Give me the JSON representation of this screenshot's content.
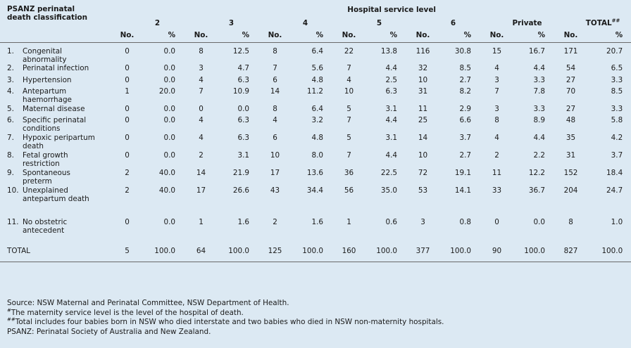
{
  "header": {
    "classification_title": "PSANZ perinatal death classification",
    "classification_line1": "PSANZ perinatal",
    "classification_line2": "death classification",
    "group_title": "Hospital service level",
    "levels": [
      "2",
      "3",
      "4",
      "5",
      "6",
      "Private",
      "TOTAL"
    ],
    "total_superscript": "##",
    "no_label": "No.",
    "pct_label": "%"
  },
  "rows": [
    {
      "idx": "1.",
      "label": "Congenital abnormality",
      "values": [
        "0",
        "0.0",
        "8",
        "12.5",
        "8",
        "6.4",
        "22",
        "13.8",
        "116",
        "30.8",
        "15",
        "16.7",
        "171",
        "20.7"
      ]
    },
    {
      "idx": "2.",
      "label": "Perinatal infection",
      "values": [
        "0",
        "0.0",
        "3",
        "4.7",
        "7",
        "5.6",
        "7",
        "4.4",
        "32",
        "8.5",
        "4",
        "4.4",
        "54",
        "6.5"
      ]
    },
    {
      "idx": "3.",
      "label": "Hypertension",
      "values": [
        "0",
        "0.0",
        "4",
        "6.3",
        "6",
        "4.8",
        "4",
        "2.5",
        "10",
        "2.7",
        "3",
        "3.3",
        "27",
        "3.3"
      ]
    },
    {
      "idx": "4.",
      "label": "Antepartum haemorrhage",
      "values": [
        "1",
        "20.0",
        "7",
        "10.9",
        "14",
        "11.2",
        "10",
        "6.3",
        "31",
        "8.2",
        "7",
        "7.8",
        "70",
        "8.5"
      ]
    },
    {
      "idx": "5.",
      "label": "Maternal disease",
      "values": [
        "0",
        "0.0",
        "0",
        "0.0",
        "8",
        "6.4",
        "5",
        "3.1",
        "11",
        "2.9",
        "3",
        "3.3",
        "27",
        "3.3"
      ]
    },
    {
      "idx": "6.",
      "label": "Specific perinatal conditions",
      "values": [
        "0",
        "0.0",
        "4",
        "6.3",
        "4",
        "3.2",
        "7",
        "4.4",
        "25",
        "6.6",
        "8",
        "8.9",
        "48",
        "5.8"
      ]
    },
    {
      "idx": "7.",
      "label": "Hypoxic peripartum death",
      "values": [
        "0",
        "0.0",
        "4",
        "6.3",
        "6",
        "4.8",
        "5",
        "3.1",
        "14",
        "3.7",
        "4",
        "4.4",
        "35",
        "4.2"
      ]
    },
    {
      "idx": "8.",
      "label": "Fetal growth restriction",
      "values": [
        "0",
        "0.0",
        "2",
        "3.1",
        "10",
        "8.0",
        "7",
        "4.4",
        "10",
        "2.7",
        "2",
        "2.2",
        "31",
        "3.7"
      ]
    },
    {
      "idx": "9.",
      "label": "Spontaneous preterm",
      "values": [
        "2",
        "40.0",
        "14",
        "21.9",
        "17",
        "13.6",
        "36",
        "22.5",
        "72",
        "19.1",
        "11",
        "12.2",
        "152",
        "18.4"
      ]
    },
    {
      "idx": "10.",
      "label": "Unexplained antepartum death",
      "values": [
        "2",
        "40.0",
        "17",
        "26.6",
        "43",
        "34.4",
        "56",
        "35.0",
        "53",
        "14.1",
        "33",
        "36.7",
        "204",
        "24.7"
      ]
    },
    {
      "idx": "11.",
      "label": "No obstetric antecedent",
      "values": [
        "0",
        "0.0",
        "1",
        "1.6",
        "2",
        "1.6",
        "1",
        "0.6",
        "3",
        "0.8",
        "0",
        "0.0",
        "8",
        "1.0"
      ]
    }
  ],
  "total_row": {
    "label": "TOTAL",
    "values": [
      "5",
      "100.0",
      "64",
      "100.0",
      "125",
      "100.0",
      "160",
      "100.0",
      "377",
      "100.0",
      "90",
      "100.0",
      "827",
      "100.0"
    ]
  },
  "footnotes": {
    "source": "Source: NSW Maternal and Perinatal Committee, NSW Department of Health.",
    "note1_mark": "#",
    "note1": "The maternity service level is the level of the hospital of death.",
    "note2_mark": "##",
    "note2": "Total includes four babies born in NSW who died interstate and two babies who died in NSW non-maternity hospitals.",
    "psanz": "PSANZ: Perinatal Society of Australia and New Zealand."
  },
  "colors": {
    "background": "#dce9f3",
    "rule": "#6a6a6a",
    "text": "#1a1a1a"
  }
}
